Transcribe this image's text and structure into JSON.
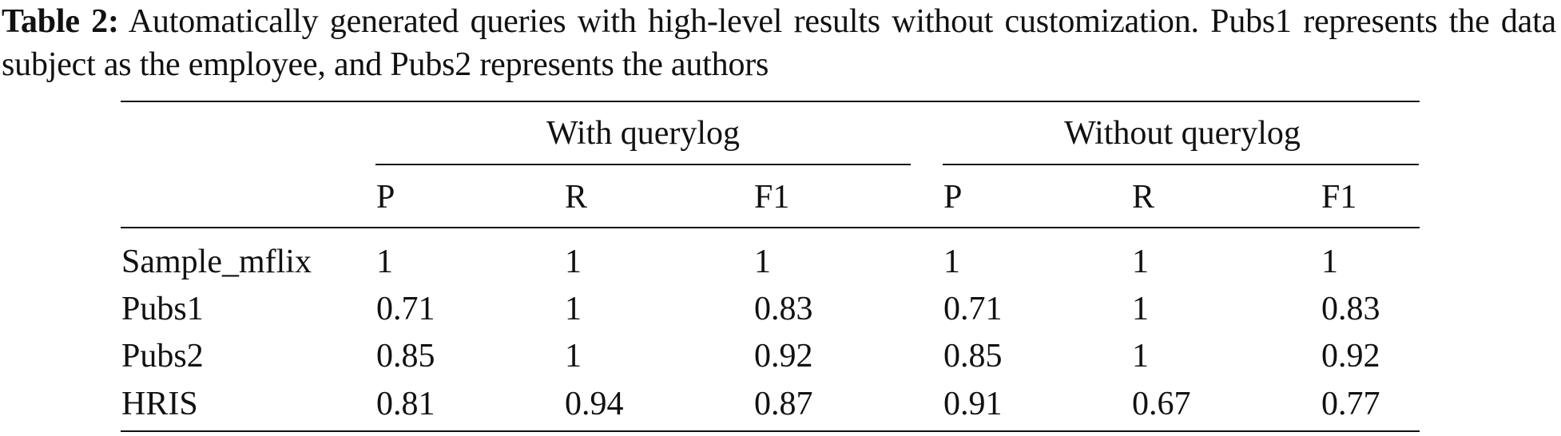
{
  "caption": {
    "label": "Table 2:",
    "text": " Automatically generated queries with high-level results without customization. Pubs1 represents the data subject as the employee, and Pubs2 represents the authors"
  },
  "table": {
    "groups": [
      "With querylog",
      "Without querylog"
    ],
    "columns": [
      "P",
      "R",
      "F1",
      "P",
      "R",
      "F1"
    ],
    "rows": [
      {
        "name": "Sample_mflix",
        "values": [
          "1",
          "1",
          "1",
          "1",
          "1",
          "1"
        ]
      },
      {
        "name": "Pubs1",
        "values": [
          "0.71",
          "1",
          "0.83",
          "0.71",
          "1",
          "0.83"
        ]
      },
      {
        "name": "Pubs2",
        "values": [
          "0.85",
          "1",
          "0.92",
          "0.85",
          "1",
          "0.92"
        ]
      },
      {
        "name": "HRIS",
        "values": [
          "0.81",
          "0.94",
          "0.87",
          "0.91",
          "0.67",
          "0.77"
        ]
      }
    ]
  }
}
